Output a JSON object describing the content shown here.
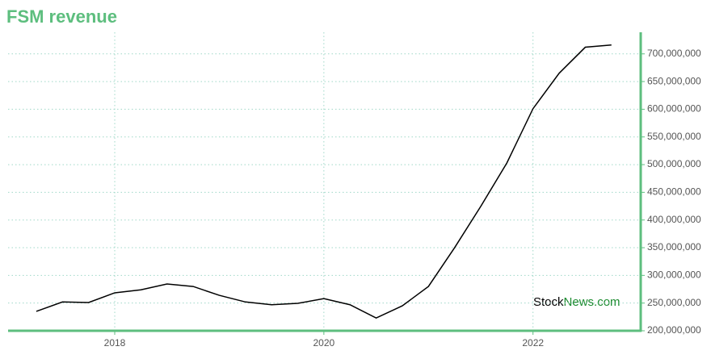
{
  "chart_data": {
    "type": "line",
    "title": "FSM revenue",
    "watermark": {
      "part1": "Stock",
      "part2": "News.com"
    },
    "x": [
      2017.25,
      2017.5,
      2017.75,
      2018,
      2018.25,
      2018.5,
      2018.75,
      2019,
      2019.25,
      2019.5,
      2019.75,
      2020,
      2020.25,
      2020.5,
      2020.75,
      2021,
      2021.25,
      2021.5,
      2021.75,
      2022,
      2022.25,
      2022.5,
      2022.75
    ],
    "series": [
      {
        "name": "FSM revenue",
        "color": "#000000",
        "values": [
          235000000,
          252000000,
          251000000,
          268500000,
          274000000,
          284500000,
          280000000,
          264000000,
          252000000,
          247000000,
          249500000,
          258000000,
          247000000,
          223000000,
          245000000,
          280000000,
          350000000,
          424500000,
          503000000,
          601000000,
          665000000,
          712000000,
          716000000
        ]
      }
    ],
    "xlim": [
      2016.98,
      2023.03
    ],
    "xticks": [
      2018,
      2020,
      2022
    ],
    "ylim": [
      200000000,
      739000000
    ],
    "yticks": [
      {
        "value": 200000000,
        "label": "200,000,000"
      },
      {
        "value": 250000000,
        "label": "250,000,000"
      },
      {
        "value": 300000000,
        "label": "300,000,000"
      },
      {
        "value": 350000000,
        "label": "350,000,000"
      },
      {
        "value": 400000000,
        "label": "400,000,000"
      },
      {
        "value": 450000000,
        "label": "450,000,000"
      },
      {
        "value": 500000000,
        "label": "500,000,000"
      },
      {
        "value": 550000000,
        "label": "550,000,000"
      },
      {
        "value": 600000000,
        "label": "600,000,000"
      },
      {
        "value": 650000000,
        "label": "650,000,000"
      },
      {
        "value": 700000000,
        "label": "700,000,000"
      }
    ],
    "grid": true,
    "axis_color": "#5dbe7e",
    "grid_color": "#9fd8c8"
  }
}
